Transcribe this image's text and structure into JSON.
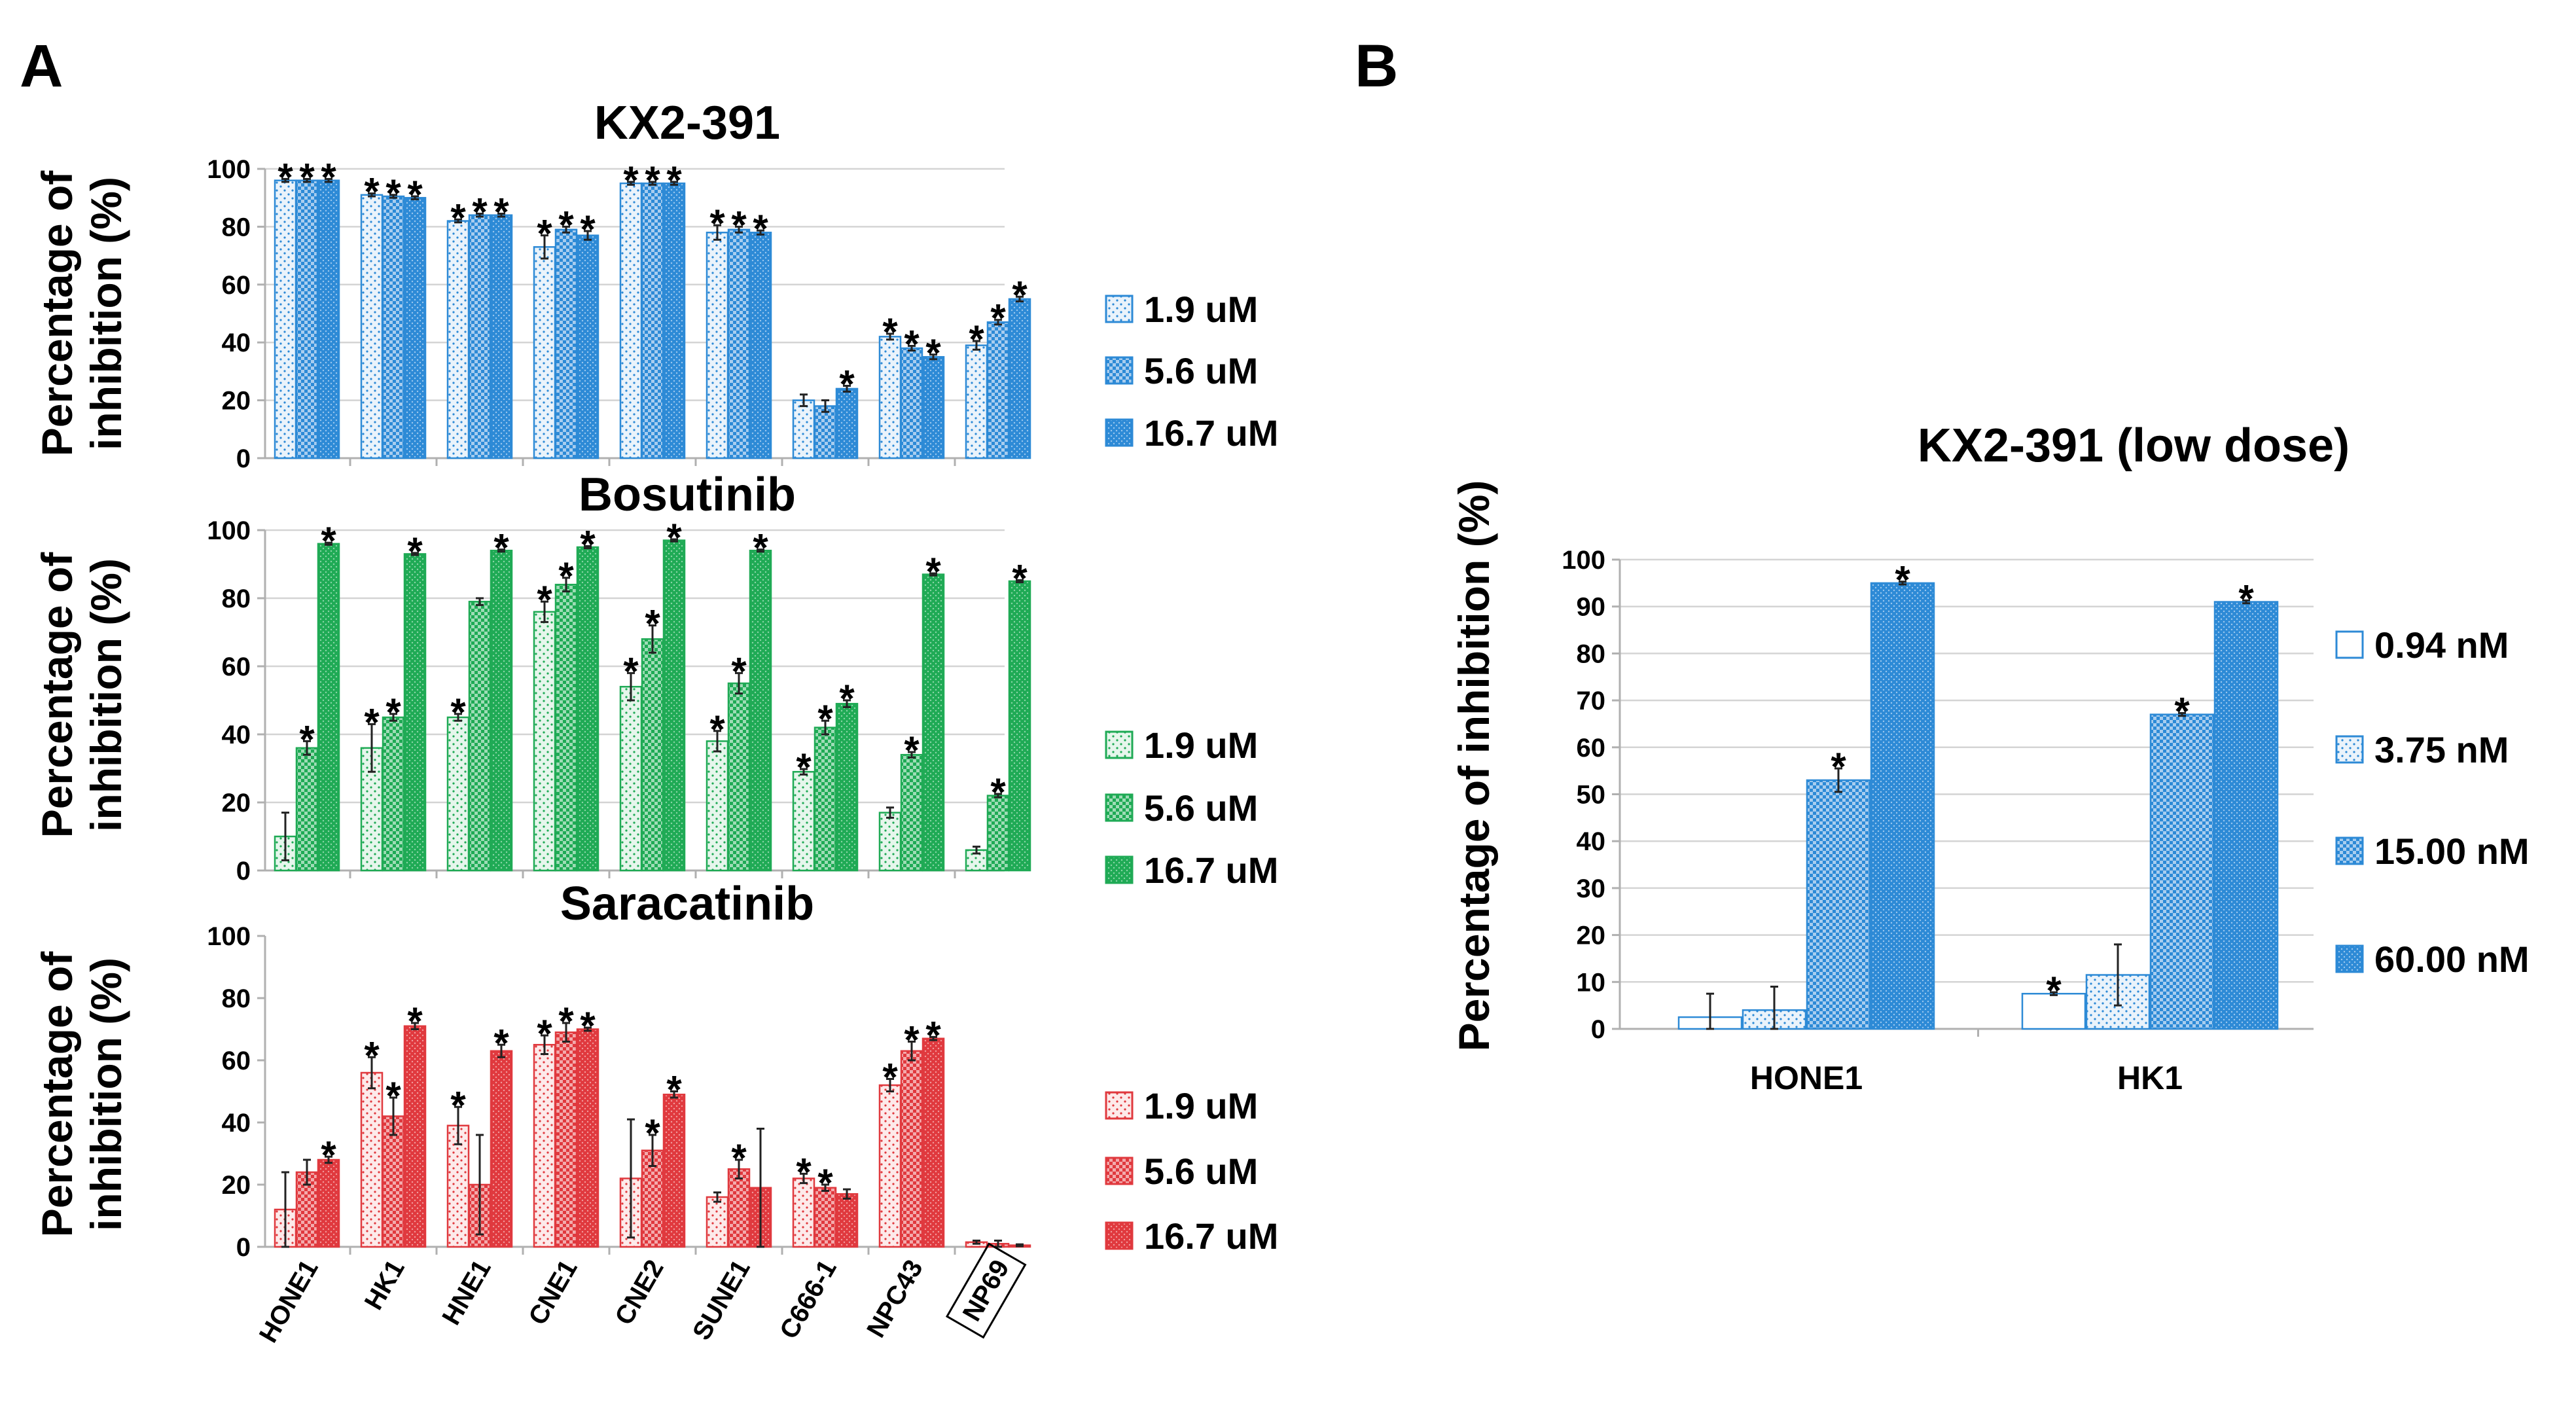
{
  "panel_labels": {
    "a": "A",
    "b": "B"
  },
  "chart_data": [
    {
      "id": "kx",
      "panel": "A",
      "type": "bar",
      "title": "KX2-391",
      "ylabel": "Percentage of inhibition (%)",
      "ylabel_lines": [
        "Percentage of",
        "inhibition (%)"
      ],
      "ylim": [
        0,
        100
      ],
      "yticks": [
        "0",
        "20",
        "40",
        "60",
        "80",
        "100"
      ],
      "grid": true,
      "legend_position": "right",
      "categories": [
        "HONE1",
        "HK1",
        "HNE1",
        "CNE1",
        "CNE2",
        "SUNE1",
        "C666-1",
        "NPC43",
        "NP69"
      ],
      "show_category_labels": false,
      "color": "#2d8ad6",
      "series": [
        {
          "name": "1.9 uM",
          "pattern": "dots",
          "values": [
            96,
            91,
            82,
            73,
            95,
            78,
            20,
            42,
            39
          ],
          "errors": [
            0.5,
            0.5,
            0.5,
            4,
            0.5,
            2.5,
            2,
            1,
            1.5
          ],
          "sig": [
            true,
            true,
            true,
            true,
            true,
            true,
            false,
            true,
            true
          ]
        },
        {
          "name": "5.6 uM",
          "pattern": "check",
          "values": [
            96,
            90.5,
            84,
            79,
            95,
            79,
            18,
            38,
            47
          ],
          "errors": [
            0.5,
            0.5,
            0.5,
            1,
            0.5,
            1,
            2,
            0.8,
            0.8
          ],
          "sig": [
            true,
            true,
            true,
            true,
            true,
            true,
            false,
            true,
            true
          ]
        },
        {
          "name": "16.7 uM",
          "pattern": "dense",
          "values": [
            96,
            90,
            84,
            77,
            95,
            78,
            24,
            35,
            55
          ],
          "errors": [
            0.5,
            0.5,
            0.5,
            1.5,
            0.5,
            0.7,
            1,
            0.8,
            0.8
          ],
          "sig": [
            true,
            true,
            true,
            true,
            true,
            true,
            true,
            true,
            true
          ]
        }
      ]
    },
    {
      "id": "bos",
      "panel": "A",
      "type": "bar",
      "title": "Bosutinib",
      "ylabel": "Percentage of inhibition (%)",
      "ylabel_lines": [
        "Percentage of",
        "inhibition (%)"
      ],
      "ylim": [
        0,
        100
      ],
      "yticks": [
        "0",
        "20",
        "40",
        "60",
        "80",
        "100"
      ],
      "grid": true,
      "legend_position": "right",
      "categories": [
        "HONE1",
        "HK1",
        "HNE1",
        "CNE1",
        "CNE2",
        "SUNE1",
        "C666-1",
        "NPC43",
        "NP69"
      ],
      "show_category_labels": false,
      "color": "#1faa55",
      "series": [
        {
          "name": "1.9 uM",
          "pattern": "dots",
          "values": [
            10,
            36,
            45,
            76,
            54,
            38,
            29,
            17,
            6
          ],
          "errors": [
            7,
            7,
            1,
            3,
            4,
            3,
            0.8,
            1.5,
            1
          ],
          "sig": [
            false,
            true,
            true,
            true,
            true,
            true,
            true,
            false,
            false
          ]
        },
        {
          "name": "5.6 uM",
          "pattern": "check",
          "values": [
            36,
            45,
            79,
            84,
            68,
            55,
            42,
            34,
            22
          ],
          "errors": [
            2,
            1,
            1,
            2,
            4,
            3,
            2,
            0.8,
            0.5
          ],
          "sig": [
            true,
            true,
            false,
            true,
            true,
            true,
            true,
            true,
            true
          ]
        },
        {
          "name": "16.7 uM",
          "pattern": "dense",
          "values": [
            96,
            93,
            94,
            95,
            97,
            94,
            49,
            87,
            85
          ],
          "errors": [
            0.3,
            0.3,
            0.3,
            0.3,
            0.3,
            0.3,
            1,
            0.3,
            0.3
          ],
          "sig": [
            true,
            true,
            true,
            true,
            true,
            true,
            true,
            true,
            true
          ]
        }
      ]
    },
    {
      "id": "sar",
      "panel": "A",
      "type": "bar",
      "title": "Saracatinib",
      "ylabel": "Percentage of inhibition (%)",
      "ylabel_lines": [
        "Percentage of",
        "inhibition (%)"
      ],
      "ylim": [
        0,
        100
      ],
      "yticks": [
        "0",
        "20",
        "40",
        "60",
        "80",
        "100"
      ],
      "grid": false,
      "legend_position": "right",
      "categories": [
        "HONE1",
        "HK1",
        "HNE1",
        "CNE1",
        "CNE2",
        "SUNE1",
        "C666-1",
        "NPC43",
        "NP69"
      ],
      "boxed_category": "NP69",
      "show_category_labels": true,
      "color": "#e0393e",
      "series": [
        {
          "name": "1.9 uM",
          "pattern": "dots",
          "values": [
            12,
            56,
            39,
            65,
            22,
            16,
            22,
            52,
            1.5
          ],
          "errors": [
            12,
            5,
            6,
            3,
            19,
            1.5,
            1.5,
            2,
            0.5
          ],
          "sig": [
            false,
            true,
            true,
            true,
            false,
            false,
            true,
            true,
            false
          ]
        },
        {
          "name": "5.6 uM",
          "pattern": "check",
          "values": [
            24,
            42,
            20,
            69,
            31,
            25,
            19,
            63,
            1
          ],
          "errors": [
            4,
            6,
            16,
            3,
            5,
            3,
            1,
            3,
            1
          ],
          "sig": [
            false,
            true,
            false,
            true,
            true,
            true,
            true,
            true,
            false
          ]
        },
        {
          "name": "16.7 uM",
          "pattern": "dense",
          "values": [
            28,
            71,
            63,
            70,
            49,
            19,
            17,
            67,
            0.5
          ],
          "errors": [
            1,
            1,
            2,
            0.5,
            1,
            19,
            1.5,
            0.5,
            0.3
          ],
          "sig": [
            true,
            true,
            true,
            true,
            true,
            false,
            false,
            true,
            false
          ]
        }
      ]
    },
    {
      "id": "low",
      "panel": "B",
      "type": "bar",
      "title": "KX2-391 (low dose)",
      "ylabel": "Percentage of inhibition (%)",
      "ylim": [
        0,
        100
      ],
      "yticks": [
        "0",
        "10",
        "20",
        "30",
        "40",
        "50",
        "60",
        "70",
        "80",
        "90",
        "100"
      ],
      "grid": true,
      "legend_position": "right",
      "categories": [
        "HONE1",
        "HK1"
      ],
      "show_category_labels": true,
      "color": "#2d8ad6",
      "series": [
        {
          "name": "0.94 nM",
          "pattern": "open",
          "values": [
            2.5,
            7.5
          ],
          "errors": [
            5,
            0.3
          ],
          "sig": [
            false,
            true
          ]
        },
        {
          "name": "3.75 nM",
          "pattern": "dots",
          "values": [
            4,
            11.5
          ],
          "errors": [
            5,
            6.5
          ],
          "sig": [
            false,
            false
          ]
        },
        {
          "name": "15.00 nM",
          "pattern": "check",
          "values": [
            53,
            67
          ],
          "errors": [
            2.5,
            0.3
          ],
          "sig": [
            true,
            true
          ]
        },
        {
          "name": "60.00 nM",
          "pattern": "dense",
          "values": [
            95,
            91
          ],
          "errors": [
            0.3,
            0.3
          ],
          "sig": [
            true,
            true
          ]
        }
      ]
    }
  ]
}
